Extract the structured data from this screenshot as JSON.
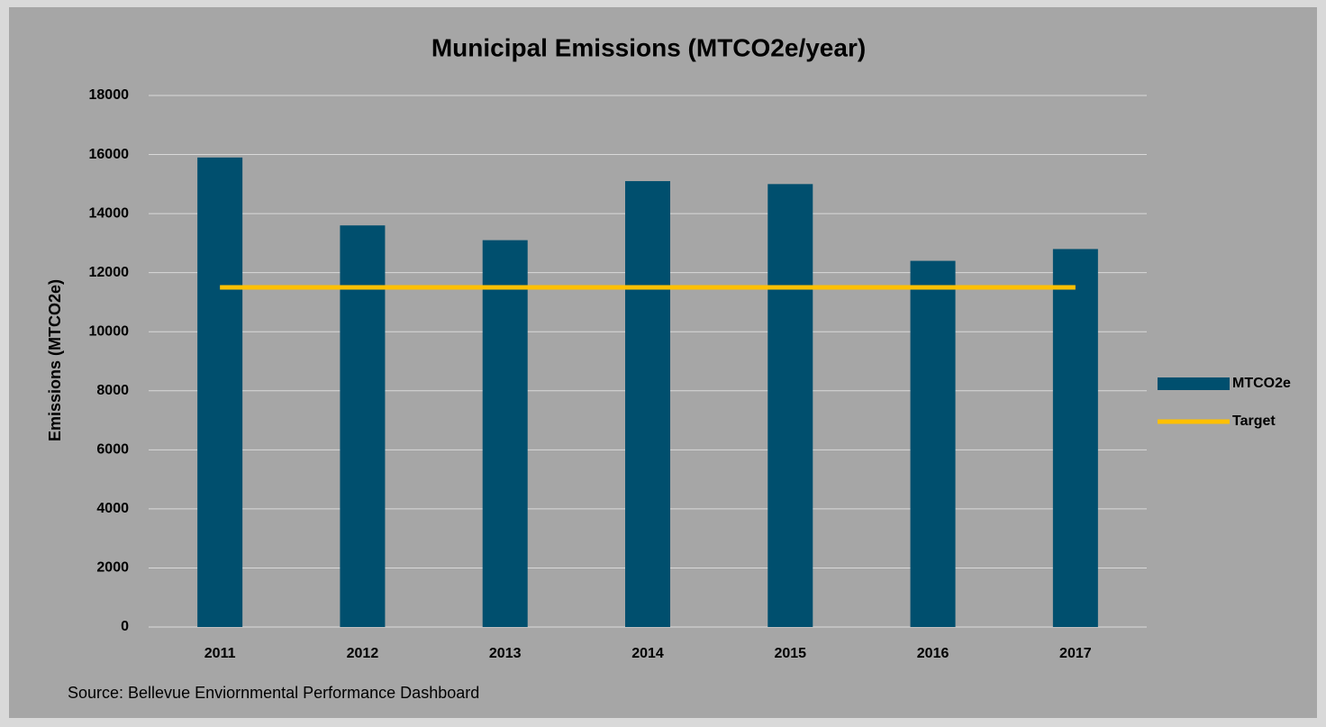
{
  "chart_data": {
    "type": "bar",
    "title": "Municipal Emissions (MTCO2e/year)",
    "y_label": "Emissions (MTCO2e)",
    "source": "Source: Bellevue Enviornmental Performance Dashboard",
    "categories": [
      "2011",
      "2012",
      "2013",
      "2014",
      "2015",
      "2016",
      "2017"
    ],
    "series": [
      {
        "name": "MTCO2e",
        "type": "bar",
        "color": "#004f6e",
        "values": [
          15900,
          13600,
          13100,
          15100,
          15000,
          12400,
          12800
        ]
      },
      {
        "name": "Target",
        "type": "line",
        "color": "#ffc000",
        "values": [
          11500,
          11500,
          11500,
          11500,
          11500,
          11500,
          11500
        ]
      }
    ],
    "ylim": [
      0,
      18000
    ],
    "yticks": [
      0,
      2000,
      4000,
      6000,
      8000,
      10000,
      12000,
      14000,
      16000,
      18000
    ],
    "grid": true,
    "legend": "right"
  }
}
